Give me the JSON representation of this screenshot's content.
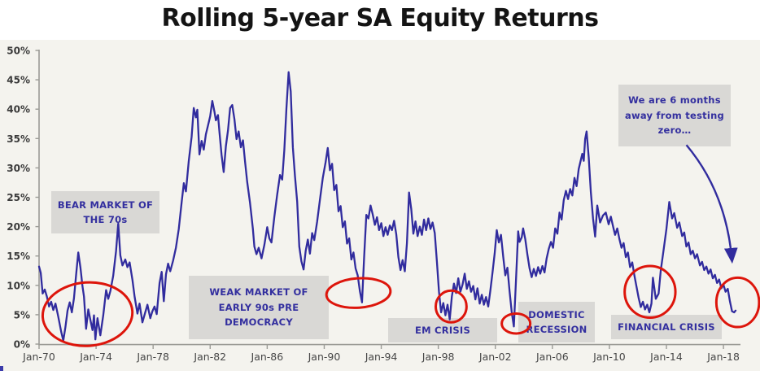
{
  "title": "Rolling 5-year SA Equity Returns",
  "chart_data": {
    "type": "line",
    "title": "Rolling 5-year SA Equity Returns",
    "series_name": "Rolling 5-year SA equity return",
    "xlabel": "",
    "ylabel": "",
    "ylim": [
      0,
      50
    ],
    "xlim": [
      1970,
      2019.2
    ],
    "grid": false,
    "legend": "none",
    "y_ticks": [
      0,
      5,
      10,
      15,
      20,
      25,
      30,
      35,
      40,
      45,
      50
    ],
    "y_tick_suffix": "%",
    "x_ticks": [
      {
        "year": 1970,
        "label": "Jan-70"
      },
      {
        "year": 1974,
        "label": "Jan-74"
      },
      {
        "year": 1978,
        "label": "Jan-78"
      },
      {
        "year": 1982,
        "label": "Jan-82"
      },
      {
        "year": 1986,
        "label": "Jan-86"
      },
      {
        "year": 1990,
        "label": "Jan-90"
      },
      {
        "year": 1994,
        "label": "Jan-94"
      },
      {
        "year": 1998,
        "label": "Jan-98"
      },
      {
        "year": 2002,
        "label": "Jan-02"
      },
      {
        "year": 2006,
        "label": "Jan-06"
      },
      {
        "year": 2010,
        "label": "Jan-10"
      },
      {
        "year": 2014,
        "label": "Jan-14"
      },
      {
        "year": 2018,
        "label": "Jan-18"
      }
    ],
    "colors": {
      "line": "#312c9e",
      "highlight_red": "#dd150b",
      "annotation_box": "#d9d8d5",
      "annotation_text": "#332f9f",
      "panel_background": "#f4f3ee",
      "axis": "#9b9b96"
    },
    "points": [
      [
        1970.0,
        13.2
      ],
      [
        1970.12,
        12.1
      ],
      [
        1970.25,
        8.6
      ],
      [
        1970.4,
        9.3
      ],
      [
        1970.55,
        8.1
      ],
      [
        1970.7,
        6.4
      ],
      [
        1970.85,
        7.2
      ],
      [
        1971.0,
        5.8
      ],
      [
        1971.15,
        6.9
      ],
      [
        1971.35,
        4.6
      ],
      [
        1971.55,
        2.1
      ],
      [
        1971.7,
        0.6
      ],
      [
        1971.85,
        2.9
      ],
      [
        1972.0,
        5.7
      ],
      [
        1972.15,
        7.1
      ],
      [
        1972.3,
        5.4
      ],
      [
        1972.45,
        7.8
      ],
      [
        1972.6,
        11.9
      ],
      [
        1972.75,
        15.6
      ],
      [
        1972.9,
        13.1
      ],
      [
        1973.05,
        9.8
      ],
      [
        1973.15,
        8.1
      ],
      [
        1973.3,
        2.6
      ],
      [
        1973.45,
        5.9
      ],
      [
        1973.6,
        4.1
      ],
      [
        1973.75,
        2.4
      ],
      [
        1973.85,
        4.9
      ],
      [
        1973.95,
        0.8
      ],
      [
        1974.1,
        4.4
      ],
      [
        1974.3,
        1.5
      ],
      [
        1974.5,
        4.9
      ],
      [
        1974.7,
        9.2
      ],
      [
        1974.85,
        7.7
      ],
      [
        1975.0,
        9.0
      ],
      [
        1975.2,
        11.6
      ],
      [
        1975.4,
        15.8
      ],
      [
        1975.55,
        20.5
      ],
      [
        1975.7,
        15.1
      ],
      [
        1975.85,
        13.4
      ],
      [
        1976.05,
        14.4
      ],
      [
        1976.2,
        13.1
      ],
      [
        1976.35,
        13.9
      ],
      [
        1976.55,
        10.9
      ],
      [
        1976.7,
        8.1
      ],
      [
        1976.9,
        5.2
      ],
      [
        1977.05,
        6.9
      ],
      [
        1977.25,
        3.7
      ],
      [
        1977.45,
        5.4
      ],
      [
        1977.6,
        6.7
      ],
      [
        1977.8,
        4.4
      ],
      [
        1977.95,
        5.6
      ],
      [
        1978.1,
        6.4
      ],
      [
        1978.25,
        5.1
      ],
      [
        1978.45,
        10.4
      ],
      [
        1978.6,
        12.3
      ],
      [
        1978.75,
        7.3
      ],
      [
        1978.9,
        11.9
      ],
      [
        1979.05,
        13.7
      ],
      [
        1979.2,
        12.4
      ],
      [
        1979.4,
        14.2
      ],
      [
        1979.6,
        16.4
      ],
      [
        1979.8,
        19.6
      ],
      [
        1980.0,
        24.1
      ],
      [
        1980.15,
        27.4
      ],
      [
        1980.3,
        26.0
      ],
      [
        1980.5,
        31.2
      ],
      [
        1980.7,
        35.3
      ],
      [
        1980.85,
        40.2
      ],
      [
        1981.0,
        38.6
      ],
      [
        1981.1,
        39.9
      ],
      [
        1981.25,
        32.3
      ],
      [
        1981.4,
        34.6
      ],
      [
        1981.55,
        33.1
      ],
      [
        1981.7,
        35.7
      ],
      [
        1981.85,
        37.2
      ],
      [
        1982.0,
        38.8
      ],
      [
        1982.15,
        41.4
      ],
      [
        1982.3,
        39.6
      ],
      [
        1982.4,
        38.1
      ],
      [
        1982.55,
        39.0
      ],
      [
        1982.65,
        36.1
      ],
      [
        1982.8,
        32.2
      ],
      [
        1982.95,
        29.3
      ],
      [
        1983.1,
        33.7
      ],
      [
        1983.25,
        36.4
      ],
      [
        1983.4,
        40.2
      ],
      [
        1983.55,
        40.7
      ],
      [
        1983.7,
        38.3
      ],
      [
        1983.85,
        34.9
      ],
      [
        1984.0,
        36.2
      ],
      [
        1984.15,
        33.5
      ],
      [
        1984.3,
        34.7
      ],
      [
        1984.45,
        31.0
      ],
      [
        1984.6,
        27.6
      ],
      [
        1984.8,
        24.0
      ],
      [
        1985.0,
        19.6
      ],
      [
        1985.1,
        16.6
      ],
      [
        1985.25,
        15.3
      ],
      [
        1985.4,
        16.4
      ],
      [
        1985.6,
        14.6
      ],
      [
        1985.8,
        16.9
      ],
      [
        1986.0,
        19.9
      ],
      [
        1986.15,
        18.0
      ],
      [
        1986.3,
        17.3
      ],
      [
        1986.5,
        21.6
      ],
      [
        1986.7,
        25.4
      ],
      [
        1986.9,
        28.8
      ],
      [
        1987.05,
        28.0
      ],
      [
        1987.2,
        33.0
      ],
      [
        1987.35,
        40.1
      ],
      [
        1987.5,
        46.3
      ],
      [
        1987.65,
        43.0
      ],
      [
        1987.8,
        33.5
      ],
      [
        1987.95,
        28.6
      ],
      [
        1988.1,
        24.3
      ],
      [
        1988.25,
        16.6
      ],
      [
        1988.4,
        14.1
      ],
      [
        1988.55,
        12.7
      ],
      [
        1988.7,
        15.9
      ],
      [
        1988.85,
        17.8
      ],
      [
        1989.0,
        15.4
      ],
      [
        1989.15,
        18.9
      ],
      [
        1989.3,
        17.7
      ],
      [
        1989.5,
        20.8
      ],
      [
        1989.7,
        24.6
      ],
      [
        1989.9,
        28.3
      ],
      [
        1990.1,
        31.0
      ],
      [
        1990.25,
        33.4
      ],
      [
        1990.4,
        29.6
      ],
      [
        1990.55,
        30.7
      ],
      [
        1990.7,
        26.2
      ],
      [
        1990.85,
        27.1
      ],
      [
        1991.0,
        22.6
      ],
      [
        1991.15,
        23.5
      ],
      [
        1991.3,
        19.9
      ],
      [
        1991.45,
        20.9
      ],
      [
        1991.6,
        17.1
      ],
      [
        1991.75,
        18.0
      ],
      [
        1991.9,
        14.4
      ],
      [
        1992.05,
        15.6
      ],
      [
        1992.2,
        12.9
      ],
      [
        1992.35,
        11.7
      ],
      [
        1992.5,
        9.0
      ],
      [
        1992.65,
        7.1
      ],
      [
        1992.8,
        14.8
      ],
      [
        1992.95,
        22.0
      ],
      [
        1993.1,
        21.4
      ],
      [
        1993.25,
        23.6
      ],
      [
        1993.4,
        22.1
      ],
      [
        1993.55,
        20.3
      ],
      [
        1993.7,
        21.6
      ],
      [
        1993.85,
        19.4
      ],
      [
        1994.0,
        20.6
      ],
      [
        1994.15,
        18.4
      ],
      [
        1994.3,
        19.9
      ],
      [
        1994.45,
        18.6
      ],
      [
        1994.6,
        20.2
      ],
      [
        1994.75,
        19.4
      ],
      [
        1994.9,
        21.0
      ],
      [
        1995.05,
        18.7
      ],
      [
        1995.2,
        14.8
      ],
      [
        1995.35,
        12.6
      ],
      [
        1995.5,
        14.3
      ],
      [
        1995.65,
        12.4
      ],
      [
        1995.8,
        17.2
      ],
      [
        1995.95,
        25.8
      ],
      [
        1996.1,
        23.0
      ],
      [
        1996.25,
        18.8
      ],
      [
        1996.4,
        20.9
      ],
      [
        1996.55,
        18.4
      ],
      [
        1996.7,
        20.0
      ],
      [
        1996.85,
        18.6
      ],
      [
        1997.0,
        21.2
      ],
      [
        1997.15,
        19.4
      ],
      [
        1997.3,
        21.4
      ],
      [
        1997.45,
        19.6
      ],
      [
        1997.6,
        20.7
      ],
      [
        1997.75,
        18.9
      ],
      [
        1997.9,
        14.1
      ],
      [
        1998.05,
        8.9
      ],
      [
        1998.2,
        5.4
      ],
      [
        1998.35,
        7.0
      ],
      [
        1998.5,
        4.9
      ],
      [
        1998.65,
        6.7
      ],
      [
        1998.8,
        4.2
      ],
      [
        1998.95,
        8.1
      ],
      [
        1999.1,
        10.3
      ],
      [
        1999.25,
        8.7
      ],
      [
        1999.4,
        11.2
      ],
      [
        1999.55,
        8.9
      ],
      [
        1999.7,
        10.1
      ],
      [
        1999.85,
        12.0
      ],
      [
        2000.0,
        9.4
      ],
      [
        2000.15,
        10.7
      ],
      [
        2000.3,
        8.9
      ],
      [
        2000.45,
        9.9
      ],
      [
        2000.6,
        7.6
      ],
      [
        2000.75,
        9.5
      ],
      [
        2000.9,
        6.9
      ],
      [
        2001.05,
        8.4
      ],
      [
        2001.2,
        6.7
      ],
      [
        2001.35,
        8.0
      ],
      [
        2001.5,
        6.4
      ],
      [
        2001.65,
        9.1
      ],
      [
        2001.8,
        12.1
      ],
      [
        2001.95,
        15.4
      ],
      [
        2002.1,
        19.4
      ],
      [
        2002.25,
        17.3
      ],
      [
        2002.4,
        18.6
      ],
      [
        2002.55,
        14.9
      ],
      [
        2002.7,
        11.7
      ],
      [
        2002.85,
        13.0
      ],
      [
        2003.0,
        8.9
      ],
      [
        2003.15,
        5.4
      ],
      [
        2003.3,
        3.0
      ],
      [
        2003.45,
        10.8
      ],
      [
        2003.6,
        19.2
      ],
      [
        2003.7,
        17.4
      ],
      [
        2003.85,
        18.2
      ],
      [
        2003.95,
        19.7
      ],
      [
        2004.1,
        17.9
      ],
      [
        2004.25,
        15.2
      ],
      [
        2004.4,
        12.9
      ],
      [
        2004.55,
        11.4
      ],
      [
        2004.7,
        12.8
      ],
      [
        2004.85,
        11.6
      ],
      [
        2005.0,
        13.1
      ],
      [
        2005.15,
        12.0
      ],
      [
        2005.3,
        13.3
      ],
      [
        2005.45,
        12.2
      ],
      [
        2005.6,
        14.6
      ],
      [
        2005.75,
        16.2
      ],
      [
        2005.9,
        17.4
      ],
      [
        2006.05,
        16.4
      ],
      [
        2006.2,
        19.7
      ],
      [
        2006.35,
        18.8
      ],
      [
        2006.5,
        22.4
      ],
      [
        2006.65,
        21.2
      ],
      [
        2006.8,
        24.5
      ],
      [
        2006.95,
        26.1
      ],
      [
        2007.1,
        24.7
      ],
      [
        2007.25,
        26.4
      ],
      [
        2007.4,
        25.3
      ],
      [
        2007.55,
        28.3
      ],
      [
        2007.7,
        26.9
      ],
      [
        2007.85,
        29.8
      ],
      [
        2008.0,
        31.4
      ],
      [
        2008.1,
        32.4
      ],
      [
        2008.2,
        31.2
      ],
      [
        2008.3,
        34.9
      ],
      [
        2008.4,
        36.2
      ],
      [
        2008.55,
        31.8
      ],
      [
        2008.7,
        25.9
      ],
      [
        2008.85,
        21.4
      ],
      [
        2009.0,
        18.3
      ],
      [
        2009.15,
        23.6
      ],
      [
        2009.35,
        20.7
      ],
      [
        2009.55,
        21.9
      ],
      [
        2009.75,
        22.4
      ],
      [
        2009.95,
        20.4
      ],
      [
        2010.1,
        21.7
      ],
      [
        2010.25,
        20.1
      ],
      [
        2010.4,
        18.6
      ],
      [
        2010.55,
        19.7
      ],
      [
        2010.7,
        17.9
      ],
      [
        2010.85,
        16.4
      ],
      [
        2011.0,
        17.2
      ],
      [
        2011.15,
        14.8
      ],
      [
        2011.3,
        15.6
      ],
      [
        2011.45,
        13.1
      ],
      [
        2011.6,
        13.9
      ],
      [
        2011.75,
        11.7
      ],
      [
        2011.9,
        9.8
      ],
      [
        2012.05,
        7.9
      ],
      [
        2012.2,
        6.3
      ],
      [
        2012.35,
        7.2
      ],
      [
        2012.5,
        5.9
      ],
      [
        2012.65,
        6.7
      ],
      [
        2012.8,
        5.4
      ],
      [
        2012.95,
        6.9
      ],
      [
        2013.05,
        11.3
      ],
      [
        2013.25,
        7.7
      ],
      [
        2013.45,
        8.6
      ],
      [
        2013.6,
        12.5
      ],
      [
        2013.8,
        16.0
      ],
      [
        2014.0,
        19.6
      ],
      [
        2014.2,
        24.2
      ],
      [
        2014.4,
        21.4
      ],
      [
        2014.55,
        22.3
      ],
      [
        2014.75,
        19.8
      ],
      [
        2014.9,
        20.7
      ],
      [
        2015.1,
        18.4
      ],
      [
        2015.25,
        19.0
      ],
      [
        2015.4,
        16.6
      ],
      [
        2015.55,
        17.3
      ],
      [
        2015.7,
        15.3
      ],
      [
        2015.85,
        15.9
      ],
      [
        2016.0,
        14.6
      ],
      [
        2016.15,
        15.3
      ],
      [
        2016.35,
        13.4
      ],
      [
        2016.5,
        14.0
      ],
      [
        2016.65,
        12.6
      ],
      [
        2016.8,
        13.2
      ],
      [
        2016.95,
        12.0
      ],
      [
        2017.1,
        12.7
      ],
      [
        2017.25,
        11.2
      ],
      [
        2017.4,
        11.8
      ],
      [
        2017.55,
        10.4
      ],
      [
        2017.7,
        11.0
      ],
      [
        2017.85,
        9.5
      ],
      [
        2018.0,
        10.1
      ],
      [
        2018.15,
        8.9
      ],
      [
        2018.3,
        9.4
      ],
      [
        2018.45,
        7.3
      ],
      [
        2018.6,
        5.6
      ],
      [
        2018.75,
        5.4
      ],
      [
        2018.85,
        5.7
      ]
    ],
    "annotations": [
      {
        "id": "bear-market-70s",
        "lines": [
          "BEAR MARKET OF",
          "THE 70s"
        ]
      },
      {
        "id": "weak-market-early-90s",
        "lines": [
          "WEAK MARKET OF",
          "EARLY 90s PRE",
          "DEMOCRACY"
        ]
      },
      {
        "id": "em-crisis",
        "lines": [
          "EM CRISIS"
        ]
      },
      {
        "id": "domestic-recession",
        "lines": [
          "DOMESTIC",
          "RECESSION"
        ]
      },
      {
        "id": "financial-crisis",
        "lines": [
          "FINANCIAL CRISIS"
        ]
      },
      {
        "id": "testing-zero",
        "lines": [
          "We are 6 months",
          "away from testing",
          "zero…"
        ]
      }
    ],
    "ellipses": [
      {
        "name": "circle-bear-market-lows",
        "cx_year": 1973.4,
        "cy_pct": 5.1,
        "rx_years": 3.15,
        "ry_pct": 5.4,
        "tilt": -4
      },
      {
        "name": "circle-early-90s-low",
        "cx_year": 1992.4,
        "cy_pct": 8.7,
        "rx_years": 2.25,
        "ry_pct": 2.5,
        "tilt": -4
      },
      {
        "name": "circle-em-crisis-low",
        "cx_year": 1998.9,
        "cy_pct": 6.4,
        "rx_years": 1.08,
        "ry_pct": 2.7,
        "tilt": 0
      },
      {
        "name": "circle-domestic-recession-low",
        "cx_year": 2003.45,
        "cy_pct": 3.5,
        "rx_years": 1.0,
        "ry_pct": 1.7,
        "tilt": 0
      },
      {
        "name": "circle-financial-crisis-lows",
        "cx_year": 2012.85,
        "cy_pct": 8.9,
        "rx_years": 1.78,
        "ry_pct": 4.4,
        "tilt": 0
      },
      {
        "name": "circle-current-low",
        "cx_year": 2019.0,
        "cy_pct": 7.1,
        "rx_years": 1.5,
        "ry_pct": 4.2,
        "tilt": 0
      }
    ],
    "arrow": {
      "name": "testing-zero-arrow",
      "from": [
        2015.4,
        33.9
      ],
      "ctrl": [
        2018.2,
        25.8
      ],
      "to": [
        2018.6,
        14.2
      ]
    }
  }
}
